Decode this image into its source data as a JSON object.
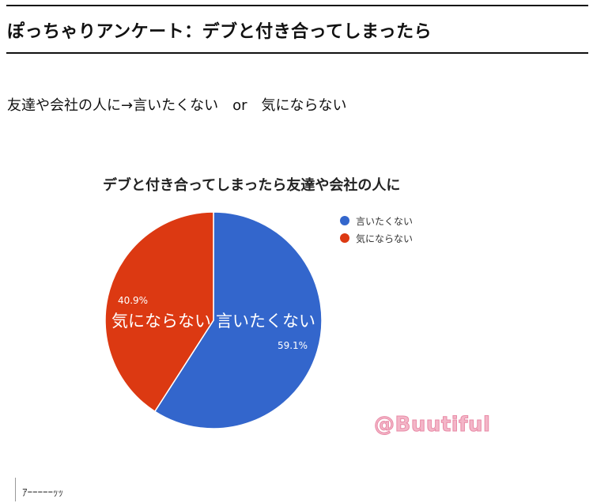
{
  "article": {
    "title": "ぽっちゃりアンケート：デブと付き合ってしまったら",
    "question": "友達や会社の人に→言いたくない　or　気にならない",
    "caption": "ｱｰｰｰｰｰｯｯ"
  },
  "watermark": "@Buutiful",
  "chart_data": {
    "type": "pie",
    "title": "デブと付き合ってしまったら友達や会社の人に",
    "legend_position": "top-right",
    "slices": [
      {
        "label": "言いたくない",
        "value": 59.1,
        "percent_label": "59.1%",
        "color": "#3366cc"
      },
      {
        "label": "気にならない",
        "value": 40.9,
        "percent_label": "40.9%",
        "color": "#dc3912"
      }
    ]
  }
}
